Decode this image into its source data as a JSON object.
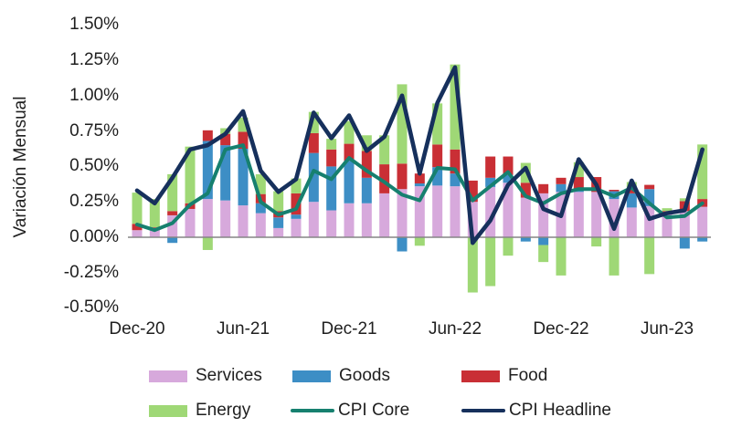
{
  "page": {
    "background": "#ffffff"
  },
  "chart_data": {
    "type": "bar",
    "subtype": "stacked-bar-with-lines",
    "title": "",
    "xlabel": "",
    "ylabel": "Variación Mensual",
    "value_unit": "%",
    "ylim": [
      -0.5,
      1.5
    ],
    "grid": "off",
    "legend_position": "bottom",
    "y_ticks": [
      1.5,
      1.25,
      1.0,
      0.75,
      0.5,
      0.25,
      0.0,
      -0.25,
      -0.5
    ],
    "y_tick_labels": [
      "1.50%",
      "1.25%",
      "1.00%",
      "0.75%",
      "0.50%",
      "0.25%",
      "0.00%",
      "-0.25%",
      "-0.50%"
    ],
    "x_tick_labels": [
      "Dec-20",
      "Jun-21",
      "Dec-21",
      "Jun-22",
      "Dec-22",
      "Jun-23"
    ],
    "categories": [
      "Dec-20",
      "Jan-21",
      "Feb-21",
      "Mar-21",
      "Apr-21",
      "May-21",
      "Jun-21",
      "Jul-21",
      "Aug-21",
      "Sep-21",
      "Oct-21",
      "Nov-21",
      "Dec-21",
      "Jan-22",
      "Feb-22",
      "Mar-22",
      "Apr-22",
      "May-22",
      "Jun-22",
      "Jul-22",
      "Aug-22",
      "Sep-22",
      "Oct-22",
      "Nov-22",
      "Dec-22",
      "Jan-23",
      "Feb-23",
      "Mar-23",
      "Apr-23",
      "May-23",
      "Jun-23",
      "Jul-23",
      "Aug-23"
    ],
    "bar_series": [
      {
        "name": "Services",
        "color": "#d7a9dc",
        "values": [
          0.05,
          0.05,
          0.155,
          0.2,
          0.27,
          0.26,
          0.225,
          0.17,
          0.065,
          0.13,
          0.25,
          0.19,
          0.24,
          0.24,
          0.31,
          0.34,
          0.36,
          0.365,
          0.36,
          0.25,
          0.355,
          0.385,
          0.28,
          0.31,
          0.32,
          0.32,
          0.32,
          0.27,
          0.21,
          0.22,
          0.17,
          0.185,
          0.215
        ]
      },
      {
        "name": "Goods",
        "color": "#3d8ec5",
        "values": [
          0,
          0,
          -0.04,
          0,
          0.41,
          0.39,
          0.4,
          0.07,
          0.075,
          0.03,
          0.345,
          0.31,
          0.3,
          0.18,
          0,
          -0.1,
          0.02,
          0.13,
          0.09,
          0,
          0.065,
          0.055,
          -0.03,
          -0.055,
          0.055,
          0.02,
          0,
          0.055,
          0.1,
          0.12,
          0,
          -0.08,
          -0.03
        ]
      },
      {
        "name": "Food",
        "color": "#c92f35",
        "values": [
          0.045,
          0.02,
          0.03,
          0.04,
          0.075,
          0.08,
          0.12,
          0.065,
          0.045,
          0.15,
          0.14,
          0.12,
          0.12,
          0.19,
          0.205,
          0.18,
          0.07,
          0.16,
          0.17,
          0.15,
          0.15,
          0.13,
          0.105,
          0.065,
          0.045,
          0.085,
          0.105,
          0.01,
          0.03,
          0.03,
          0.015,
          0.07,
          0.055
        ]
      },
      {
        "name": "Energy",
        "color": "#9fd876",
        "values": [
          0.22,
          0.2,
          0.26,
          0.4,
          -0.09,
          0.04,
          0.1,
          0.14,
          0.14,
          0.105,
          0.15,
          0.075,
          0.16,
          0.11,
          0.205,
          0.56,
          -0.06,
          0.29,
          0.6,
          -0.39,
          -0.345,
          -0.13,
          0.14,
          -0.12,
          -0.27,
          0.105,
          -0.065,
          -0.27,
          0.05,
          -0.26,
          0.02,
          0.02,
          0.385
        ]
      }
    ],
    "line_series": [
      {
        "name": "CPI Core",
        "color": "#16806f",
        "values": [
          0.09,
          0.05,
          0.1,
          0.23,
          0.31,
          0.62,
          0.65,
          0.25,
          0.16,
          0.2,
          0.47,
          0.41,
          0.56,
          0.47,
          0.39,
          0.3,
          0.26,
          0.49,
          0.48,
          0.26,
          0.36,
          0.46,
          0.29,
          0.24,
          0.31,
          0.34,
          0.34,
          0.29,
          0.35,
          0.24,
          0.14,
          0.15,
          0.24
        ]
      },
      {
        "name": "CPI Headline",
        "color": "#16305c",
        "values": [
          0.33,
          0.24,
          0.42,
          0.62,
          0.65,
          0.73,
          0.89,
          0.47,
          0.32,
          0.41,
          0.88,
          0.7,
          0.86,
          0.61,
          0.71,
          1.0,
          0.45,
          0.95,
          1.2,
          -0.04,
          0.12,
          0.37,
          0.49,
          0.2,
          0.15,
          0.55,
          0.37,
          0.06,
          0.4,
          0.13,
          0.17,
          0.19,
          0.62
        ]
      }
    ],
    "zero_line_color": "#858585"
  }
}
